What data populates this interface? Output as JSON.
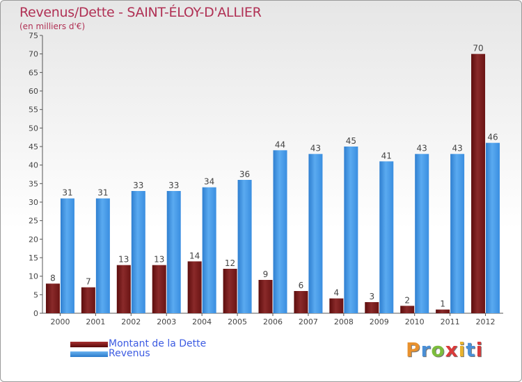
{
  "chart_data": {
    "type": "bar",
    "title": "Revenus/Dette - SAINT-ÉLOY-D'ALLIER",
    "subtitle": "(en milliers d'€)",
    "xlabel": "",
    "ylabel": "",
    "ylim": [
      0,
      75
    ],
    "yticks": [
      0,
      5,
      10,
      15,
      20,
      25,
      30,
      35,
      40,
      45,
      50,
      55,
      60,
      65,
      70,
      75
    ],
    "grid": false,
    "categories": [
      "2000",
      "2001",
      "2002",
      "2003",
      "2004",
      "2005",
      "2006",
      "2007",
      "2008",
      "2009",
      "2010",
      "2011",
      "2012"
    ],
    "series": [
      {
        "name": "Montant de la Dette",
        "color": "#7b1a1a",
        "values": [
          8,
          7,
          13,
          13,
          14,
          12,
          9,
          6,
          4,
          3,
          2,
          1,
          70
        ]
      },
      {
        "name": "Revenus",
        "color": "#3d8fdb",
        "values": [
          31,
          31,
          33,
          33,
          34,
          36,
          44,
          43,
          45,
          41,
          43,
          43,
          46
        ]
      }
    ],
    "legend_position": "bottom-left"
  },
  "logo_text": "Proxiti",
  "logo_colors": [
    "#e8912e",
    "#4a8fd6",
    "#7cbd3c",
    "#d93a3a",
    "#e8b22e",
    "#4a8fd6",
    "#d93a3a"
  ]
}
